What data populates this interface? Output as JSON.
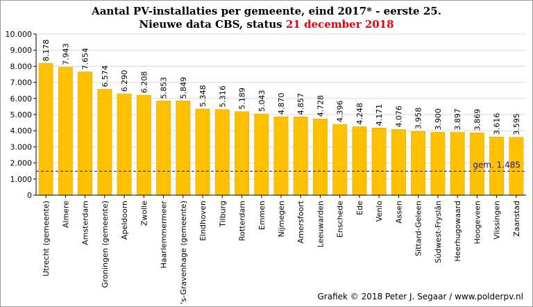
{
  "title": {
    "line1": "Aantal PV-installaties  per gemeente, eind  2017* - eerste 25.",
    "line2_prefix": "Nieuwe data CBS, status ",
    "line2_date": "21 december 2018"
  },
  "credit": "Grafiek  © 2018  Peter J. Segaar / www.polderpv.nl",
  "colors": {
    "bar": "#ffc000",
    "bar_edge": "#d9a300",
    "average_line": "#1a1aa6",
    "title_highlight": "#e8000b",
    "grid": "#d9d9d9"
  },
  "chart_data": {
    "type": "bar",
    "categories": [
      "Utrecht (gemeente)",
      "Almere",
      "Amsterdam",
      "Groningen (gemeente)",
      "Apeldoorn",
      "Zwolle",
      "Haarlemmermeer",
      "'s-Gravenhage (gemeente)",
      "Eindhoven",
      "Tilburg",
      "Rotterdam",
      "Emmen",
      "Nijmegen",
      "Amersfoort",
      "Leeuwarden",
      "Enschede",
      "Ede",
      "Venlo",
      "Assen",
      "Sittard-Geleen",
      "Súdwest-Fryslân",
      "Heerhugowaard",
      "Hoogeveen",
      "Vlissingen",
      "Zaanstad"
    ],
    "values": [
      8178,
      7943,
      7654,
      6574,
      6290,
      6208,
      5853,
      5849,
      5348,
      5316,
      5189,
      5043,
      4870,
      4857,
      4728,
      4396,
      4248,
      4171,
      4076,
      3958,
      3900,
      3897,
      3869,
      3616,
      3595
    ],
    "value_labels": [
      "8.178",
      "7.943",
      "7.654",
      "6.574",
      "6.290",
      "6.208",
      "5.853",
      "5.849",
      "5.348",
      "5.316",
      "5.189",
      "5.043",
      "4.870",
      "4.857",
      "4.728",
      "4.396",
      "4.248",
      "4.171",
      "4.076",
      "3.958",
      "3.900",
      "3.897",
      "3.869",
      "3.616",
      "3.595"
    ],
    "ylim": [
      0,
      10000
    ],
    "y_ticks": [
      0,
      1000,
      2000,
      3000,
      4000,
      5000,
      6000,
      7000,
      8000,
      9000,
      10000
    ],
    "y_tick_labels": [
      "0",
      "1.000",
      "2.000",
      "3.000",
      "4.000",
      "5.000",
      "6.000",
      "7.000",
      "8.000",
      "9.000",
      "10.000"
    ],
    "average": {
      "value": 1485,
      "label": "gem.  1.485",
      "style": "dashed"
    },
    "grid": true,
    "legend": "none"
  }
}
